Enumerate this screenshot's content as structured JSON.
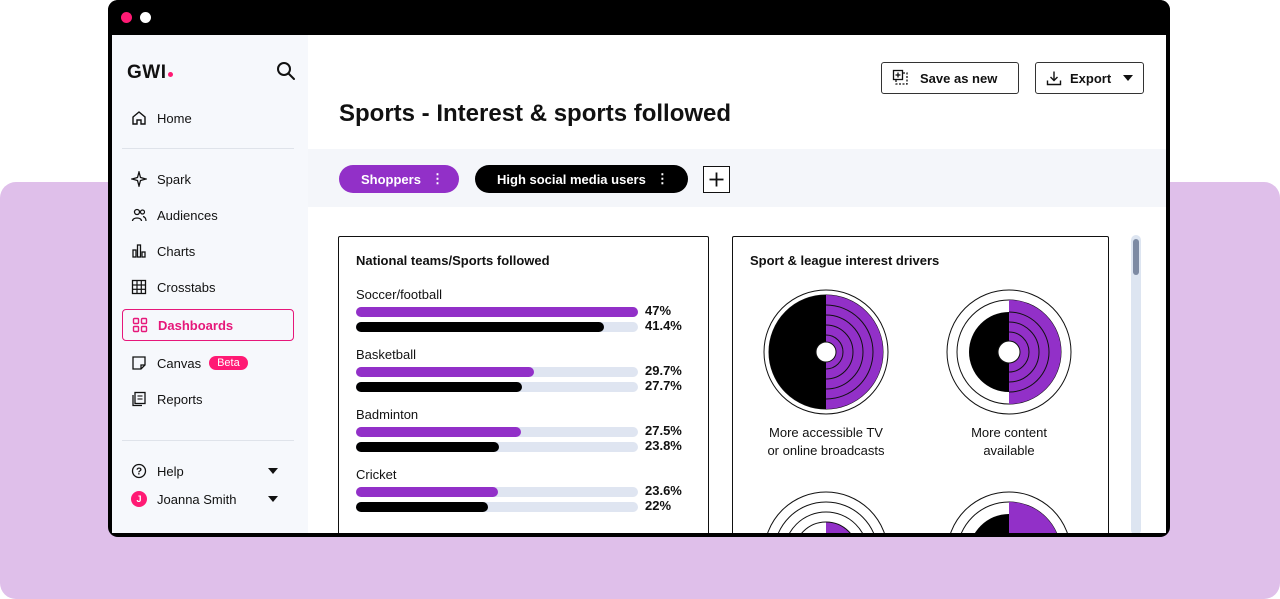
{
  "app": {
    "logo": "GWI",
    "window_dots": [
      "red",
      "white"
    ]
  },
  "sidebar": {
    "items": [
      {
        "label": "Home",
        "icon": "home-icon"
      },
      {
        "label": "Spark",
        "icon": "sparkle-icon"
      },
      {
        "label": "Audiences",
        "icon": "users-icon"
      },
      {
        "label": "Charts",
        "icon": "bar-chart-icon"
      },
      {
        "label": "Crosstabs",
        "icon": "table-icon"
      },
      {
        "label": "Dashboards",
        "icon": "dashboard-icon",
        "active": true
      },
      {
        "label": "Canvas",
        "icon": "canvas-icon",
        "badge": "Beta"
      },
      {
        "label": "Reports",
        "icon": "reports-icon"
      }
    ],
    "help_label": "Help",
    "user_name": "Joanna Smith",
    "user_initial": "J"
  },
  "header": {
    "save_label": "Save as new",
    "export_label": "Export",
    "title": "Sports - Interest & sports followed"
  },
  "filters": {
    "chips": [
      "Shoppers",
      "High social media users"
    ],
    "kebab": "⋮"
  },
  "cards": {
    "left": {
      "title": "National teams/Sports followed",
      "rows": [
        {
          "label": "Soccer/football",
          "a": 47,
          "a_text": "47%",
          "b": 41.4,
          "b_text": "41.4%"
        },
        {
          "label": "Basketball",
          "a": 29.7,
          "a_text": "29.7%",
          "b": 27.7,
          "b_text": "27.7%"
        },
        {
          "label": "Badminton",
          "a": 27.5,
          "a_text": "27.5%",
          "b": 23.8,
          "b_text": "23.8%"
        },
        {
          "label": "Cricket",
          "a": 23.6,
          "a_text": "23.6%",
          "b": 22,
          "b_text": "22%"
        }
      ]
    },
    "right": {
      "title": "Sport & league interest drivers",
      "drivers": [
        {
          "line1": "More accessible TV",
          "line2": "or online broadcasts"
        },
        {
          "line1": "More content",
          "line2": "available"
        }
      ]
    }
  },
  "colors": {
    "accent_pink": "#ff1a74",
    "purple": "#9230c8",
    "black": "#000000",
    "track": "#dfe5f1",
    "lilac_bg": "#dfbfea"
  }
}
